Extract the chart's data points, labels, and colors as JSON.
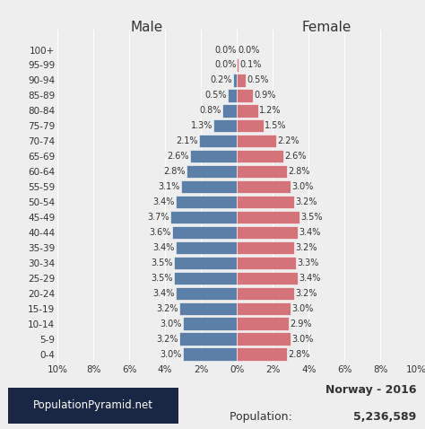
{
  "age_groups": [
    "0-4",
    "5-9",
    "10-14",
    "15-19",
    "20-24",
    "25-29",
    "30-34",
    "35-39",
    "40-44",
    "45-49",
    "50-54",
    "55-59",
    "60-64",
    "65-69",
    "70-74",
    "75-79",
    "80-84",
    "85-89",
    "90-94",
    "95-99",
    "100+"
  ],
  "male": [
    3.0,
    3.2,
    3.0,
    3.2,
    3.4,
    3.5,
    3.5,
    3.4,
    3.6,
    3.7,
    3.4,
    3.1,
    2.8,
    2.6,
    2.1,
    1.3,
    0.8,
    0.5,
    0.2,
    0.0,
    0.0
  ],
  "female": [
    2.8,
    3.0,
    2.9,
    3.0,
    3.2,
    3.4,
    3.3,
    3.2,
    3.4,
    3.5,
    3.2,
    3.0,
    2.8,
    2.6,
    2.2,
    1.5,
    1.2,
    0.9,
    0.5,
    0.1,
    0.0
  ],
  "male_color": "#5b7fa6",
  "female_color": "#d4737a",
  "bg_color": "#eeeeee",
  "title_male": "Male",
  "title_female": "Female",
  "xlim": [
    -10,
    10
  ],
  "bar_height": 0.85,
  "footer_left": "PopulationPyramid.net",
  "footer_right_line1": "Norway - 2016",
  "footer_right_line2_plain": "Population: ",
  "footer_right_line2_bold": "5,236,589",
  "grid_color": "#ffffff",
  "label_fontsize": 7.0,
  "axis_fontsize": 7.5,
  "title_fontsize": 11,
  "footer_box_color": "#1a2744",
  "footer_text_color": "#333333"
}
